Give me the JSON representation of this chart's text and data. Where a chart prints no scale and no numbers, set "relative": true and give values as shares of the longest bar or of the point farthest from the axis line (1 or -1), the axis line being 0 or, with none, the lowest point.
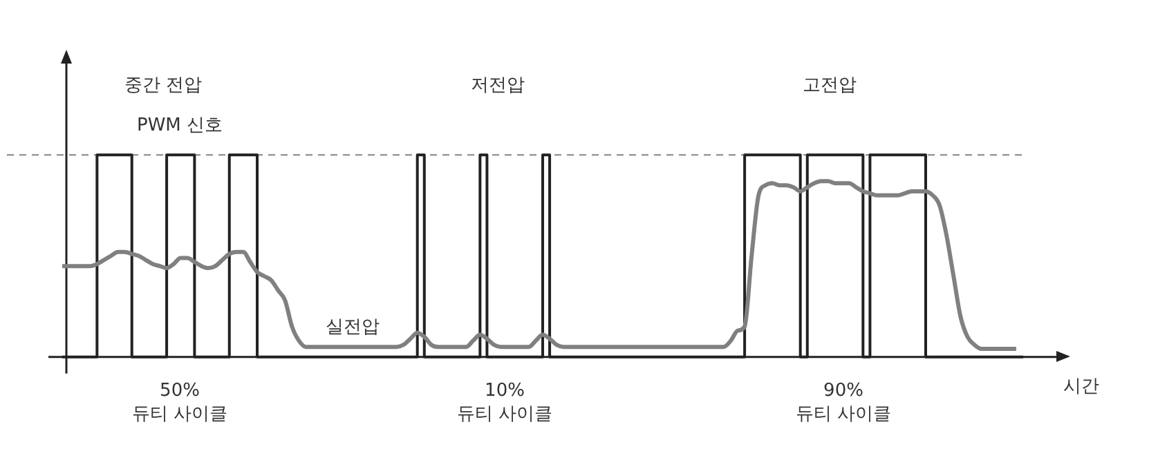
{
  "chart_data": {
    "type": "line",
    "relative": true,
    "xlabel": "시간",
    "tick_labels": false,
    "categories": [
      null,
      null,
      null,
      null,
      null,
      null,
      null,
      null,
      null,
      null,
      null,
      null,
      null,
      null,
      null,
      null,
      null,
      null,
      null,
      null,
      null,
      null,
      null,
      null,
      null,
      null,
      null,
      null,
      null,
      null,
      null,
      null,
      null,
      null,
      null,
      null,
      null,
      null,
      null,
      null,
      null,
      null,
      null,
      null,
      null,
      null,
      null,
      null,
      null,
      null,
      null,
      null,
      null,
      null,
      null,
      null,
      null,
      null,
      null,
      null,
      null,
      null,
      null,
      null,
      null,
      null,
      null,
      null,
      null,
      null,
      null,
      null,
      null,
      null,
      null,
      null,
      null,
      null,
      null,
      null,
      null,
      null,
      null,
      null,
      null,
      null,
      null,
      null,
      null,
      null,
      null,
      null,
      null,
      null,
      null,
      null,
      null,
      null,
      null,
      null,
      null,
      null,
      null,
      null,
      null,
      null,
      null,
      null,
      null,
      null,
      null,
      null,
      null,
      null,
      null,
      null,
      null,
      null,
      null,
      null,
      null,
      null,
      null,
      null,
      null,
      null,
      null,
      null,
      null,
      null,
      null,
      null,
      null,
      null,
      null,
      null,
      null,
      null,
      null
    ],
    "series": [
      {
        "name": "PWM 신호",
        "type": "step",
        "color": "#222222",
        "values": [
          0,
          0,
          0,
          0,
          0,
          1,
          1,
          1,
          1,
          1,
          0,
          0,
          0,
          0,
          0,
          1,
          1,
          1,
          1,
          0,
          0,
          0,
          0,
          0,
          1,
          1,
          1,
          1,
          0,
          0,
          0,
          0,
          0,
          0,
          0,
          0,
          0,
          0,
          0,
          0,
          0,
          0,
          0,
          0,
          0,
          0,
          0,
          0,
          0,
          0,
          0,
          1,
          0,
          0,
          0,
          0,
          0,
          0,
          0,
          0,
          1,
          0,
          0,
          0,
          0,
          0,
          0,
          0,
          0,
          1,
          0,
          0,
          0,
          0,
          0,
          0,
          0,
          0,
          0,
          0,
          0,
          0,
          0,
          0,
          0,
          0,
          0,
          0,
          0,
          0,
          0,
          0,
          0,
          0,
          0,
          0,
          0,
          0,
          1,
          1,
          1,
          1,
          1,
          1,
          1,
          1,
          0,
          1,
          1,
          1,
          1,
          1,
          1,
          1,
          1,
          0,
          1,
          1,
          1,
          1,
          1,
          1,
          1,
          1,
          0,
          0,
          0,
          0,
          0,
          0,
          0,
          0,
          0,
          0,
          0,
          0,
          0,
          0,
          0
        ]
      },
      {
        "name": "실전압",
        "type": "line",
        "color": "#808080",
        "values": [
          0.45,
          0.45,
          0.45,
          0.45,
          0.45,
          0.46,
          0.48,
          0.5,
          0.52,
          0.52,
          0.51,
          0.5,
          0.48,
          0.46,
          0.45,
          0.44,
          0.46,
          0.49,
          0.49,
          0.47,
          0.45,
          0.44,
          0.45,
          0.48,
          0.51,
          0.52,
          0.52,
          0.47,
          0.42,
          0.4,
          0.38,
          0.33,
          0.28,
          0.15,
          0.08,
          0.05,
          0.05,
          0.05,
          0.05,
          0.05,
          0.05,
          0.05,
          0.05,
          0.05,
          0.05,
          0.05,
          0.05,
          0.05,
          0.05,
          0.06,
          0.09,
          0.12,
          0.1,
          0.06,
          0.05,
          0.05,
          0.05,
          0.05,
          0.05,
          0.08,
          0.11,
          0.09,
          0.06,
          0.05,
          0.05,
          0.05,
          0.05,
          0.05,
          0.08,
          0.11,
          0.09,
          0.06,
          0.05,
          0.05,
          0.05,
          0.05,
          0.05,
          0.05,
          0.05,
          0.05,
          0.05,
          0.05,
          0.05,
          0.05,
          0.05,
          0.05,
          0.05,
          0.05,
          0.05,
          0.05,
          0.05,
          0.05,
          0.05,
          0.05,
          0.05,
          0.05,
          0.08,
          0.13,
          0.15,
          0.5,
          0.8,
          0.85,
          0.86,
          0.85,
          0.85,
          0.84,
          0.82,
          0.84,
          0.86,
          0.87,
          0.87,
          0.86,
          0.86,
          0.86,
          0.84,
          0.82,
          0.81,
          0.8,
          0.8,
          0.8,
          0.8,
          0.81,
          0.82,
          0.82,
          0.82,
          0.8,
          0.75,
          0.6,
          0.4,
          0.2,
          0.1,
          0.06,
          0.04,
          0.04,
          0.04,
          0.04,
          0.04,
          0.04,
          null
        ]
      }
    ],
    "ref_lines": [
      {
        "axis": "y",
        "value": 1,
        "color": "#999999",
        "line_style": "dashed"
      }
    ],
    "annotations": [
      "중간 전압",
      "저전압",
      "고전압",
      "50%\n듀티 사이클",
      "10%\n듀티 사이클",
      "90%\n듀티 사이클"
    ]
  }
}
